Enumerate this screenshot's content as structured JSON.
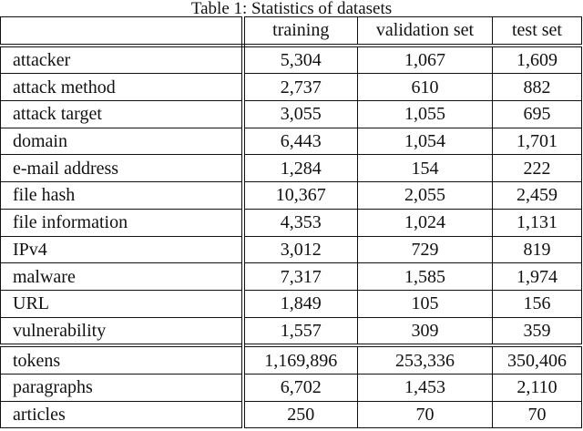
{
  "caption": "Table 1: Statistics of datasets",
  "columns": {
    "label": "",
    "training": "training",
    "validation": "validation set",
    "test": "test set"
  },
  "rows": [
    {
      "label": "attacker",
      "training": "5,304",
      "validation": "1,067",
      "test": "1,609"
    },
    {
      "label": "attack method",
      "training": "2,737",
      "validation": "610",
      "test": "882"
    },
    {
      "label": "attack target",
      "training": "3,055",
      "validation": "1,055",
      "test": "695"
    },
    {
      "label": "domain",
      "training": "6,443",
      "validation": "1,054",
      "test": "1,701"
    },
    {
      "label": "e-mail address",
      "training": "1,284",
      "validation": "154",
      "test": "222"
    },
    {
      "label": "file hash",
      "training": "10,367",
      "validation": "2,055",
      "test": "2,459"
    },
    {
      "label": "file information",
      "training": "4,353",
      "validation": "1,024",
      "test": "1,131"
    },
    {
      "label": "IPv4",
      "training": "3,012",
      "validation": "729",
      "test": "819"
    },
    {
      "label": "malware",
      "training": "7,317",
      "validation": "1,585",
      "test": "1,974"
    },
    {
      "label": "URL",
      "training": "1,849",
      "validation": "105",
      "test": "156"
    },
    {
      "label": "vulnerability",
      "training": "1,557",
      "validation": "309",
      "test": "359"
    }
  ],
  "summary": [
    {
      "label": "tokens",
      "training": "1,169,896",
      "validation": "253,336",
      "test": "350,406"
    },
    {
      "label": "paragraphs",
      "training": "6,702",
      "validation": "1,453",
      "test": "2,110"
    },
    {
      "label": "articles",
      "training": "250",
      "validation": "70",
      "test": "70"
    }
  ]
}
